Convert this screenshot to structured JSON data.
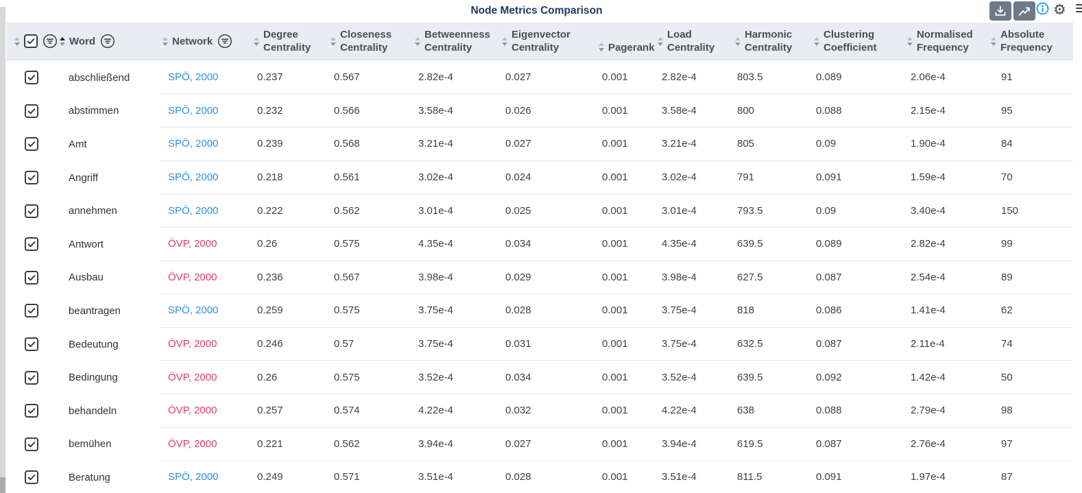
{
  "title": "Node Metrics Comparison",
  "toolbar": {
    "buttons": [
      {
        "name": "download-button",
        "icon": "download-icon"
      },
      {
        "name": "open-chart-button",
        "icon": "trend-chart-icon"
      }
    ],
    "info_icon": "info-icon",
    "settings_icon": "gear-icon",
    "menu_icon": "hamburger-menu-icon"
  },
  "colors": {
    "spo_blue": "#2b90e8",
    "ovp_red": "#e23a63",
    "title_navy": "#1e3c64",
    "header_bg": "#e9edf1",
    "toolbar_button": "#6e7a87",
    "info_blue": "#1b9df0"
  },
  "table": {
    "columns": [
      {
        "key": "select",
        "label": "",
        "label2": "",
        "filter": true,
        "sortable": true
      },
      {
        "key": "word",
        "label": "Word",
        "label2": "",
        "filter": true,
        "sortable": true,
        "sort": "asc"
      },
      {
        "key": "network",
        "label": "Network",
        "label2": "",
        "filter": true,
        "sortable": true
      },
      {
        "key": "degree",
        "label": "Degree",
        "label2": "Centrality",
        "filter": false,
        "sortable": true
      },
      {
        "key": "closeness",
        "label": "Closeness",
        "label2": "Centrality",
        "filter": false,
        "sortable": true
      },
      {
        "key": "betweenness",
        "label": "Betweenness",
        "label2": "Centrality",
        "filter": false,
        "sortable": true
      },
      {
        "key": "eigenvector",
        "label": "Eigenvector",
        "label2": "Centrality",
        "filter": false,
        "sortable": true
      },
      {
        "key": "pagerank",
        "label": "Pagerank",
        "label2": "",
        "filter": false,
        "sortable": true,
        "single": true
      },
      {
        "key": "load",
        "label": "Load",
        "label2": "Centrality",
        "filter": false,
        "sortable": true
      },
      {
        "key": "harmonic",
        "label": "Harmonic",
        "label2": "Centrality",
        "filter": false,
        "sortable": true
      },
      {
        "key": "clustering",
        "label": "Clustering",
        "label2": "Coefficient",
        "filter": false,
        "sortable": true
      },
      {
        "key": "normalised",
        "label": "Normalised",
        "label2": "Frequency",
        "filter": false,
        "sortable": true
      },
      {
        "key": "absolute",
        "label": "Absolute",
        "label2": "Frequency",
        "filter": false,
        "sortable": true
      }
    ],
    "rows": [
      {
        "checked": true,
        "word": "abschließend",
        "network": "SPÖ, 2000",
        "party": "spo",
        "degree": "0.237",
        "closeness": "0.567",
        "betweenness": "2.82e-4",
        "eigenvector": "0.027",
        "pagerank": "0.001",
        "load": "2.82e-4",
        "harmonic": "803.5",
        "clustering": "0.089",
        "normalised": "2.06e-4",
        "absolute": "91"
      },
      {
        "checked": true,
        "word": "abstimmen",
        "network": "SPÖ, 2000",
        "party": "spo",
        "degree": "0.232",
        "closeness": "0.566",
        "betweenness": "3.58e-4",
        "eigenvector": "0.026",
        "pagerank": "0.001",
        "load": "3.58e-4",
        "harmonic": "800",
        "clustering": "0.088",
        "normalised": "2.15e-4",
        "absolute": "95"
      },
      {
        "checked": true,
        "word": "Amt",
        "network": "SPÖ, 2000",
        "party": "spo",
        "degree": "0.239",
        "closeness": "0.568",
        "betweenness": "3.21e-4",
        "eigenvector": "0.027",
        "pagerank": "0.001",
        "load": "3.21e-4",
        "harmonic": "805",
        "clustering": "0.09",
        "normalised": "1.90e-4",
        "absolute": "84"
      },
      {
        "checked": true,
        "word": "Angriff",
        "network": "SPÖ, 2000",
        "party": "spo",
        "degree": "0.218",
        "closeness": "0.561",
        "betweenness": "3.02e-4",
        "eigenvector": "0.024",
        "pagerank": "0.001",
        "load": "3.02e-4",
        "harmonic": "791",
        "clustering": "0.091",
        "normalised": "1.59e-4",
        "absolute": "70"
      },
      {
        "checked": true,
        "word": "annehmen",
        "network": "SPÖ, 2000",
        "party": "spo",
        "degree": "0.222",
        "closeness": "0.562",
        "betweenness": "3.01e-4",
        "eigenvector": "0.025",
        "pagerank": "0.001",
        "load": "3.01e-4",
        "harmonic": "793.5",
        "clustering": "0.09",
        "normalised": "3.40e-4",
        "absolute": "150"
      },
      {
        "checked": true,
        "word": "Antwort",
        "network": "ÖVP, 2000",
        "party": "ovp",
        "degree": "0.26",
        "closeness": "0.575",
        "betweenness": "4.35e-4",
        "eigenvector": "0.034",
        "pagerank": "0.001",
        "load": "4.35e-4",
        "harmonic": "639.5",
        "clustering": "0.089",
        "normalised": "2.82e-4",
        "absolute": "99"
      },
      {
        "checked": true,
        "word": "Ausbau",
        "network": "ÖVP, 2000",
        "party": "ovp",
        "degree": "0.236",
        "closeness": "0.567",
        "betweenness": "3.98e-4",
        "eigenvector": "0.029",
        "pagerank": "0.001",
        "load": "3.98e-4",
        "harmonic": "627.5",
        "clustering": "0.087",
        "normalised": "2.54e-4",
        "absolute": "89"
      },
      {
        "checked": true,
        "word": "beantragen",
        "network": "SPÖ, 2000",
        "party": "spo",
        "degree": "0.259",
        "closeness": "0.575",
        "betweenness": "3.75e-4",
        "eigenvector": "0.028",
        "pagerank": "0.001",
        "load": "3.75e-4",
        "harmonic": "818",
        "clustering": "0.086",
        "normalised": "1.41e-4",
        "absolute": "62"
      },
      {
        "checked": true,
        "word": "Bedeutung",
        "network": "ÖVP, 2000",
        "party": "ovp",
        "degree": "0.246",
        "closeness": "0.57",
        "betweenness": "3.75e-4",
        "eigenvector": "0.031",
        "pagerank": "0.001",
        "load": "3.75e-4",
        "harmonic": "632.5",
        "clustering": "0.087",
        "normalised": "2.11e-4",
        "absolute": "74"
      },
      {
        "checked": true,
        "word": "Bedingung",
        "network": "ÖVP, 2000",
        "party": "ovp",
        "degree": "0.26",
        "closeness": "0.575",
        "betweenness": "3.52e-4",
        "eigenvector": "0.034",
        "pagerank": "0.001",
        "load": "3.52e-4",
        "harmonic": "639.5",
        "clustering": "0.092",
        "normalised": "1.42e-4",
        "absolute": "50"
      },
      {
        "checked": true,
        "word": "behandeln",
        "network": "ÖVP, 2000",
        "party": "ovp",
        "degree": "0.257",
        "closeness": "0.574",
        "betweenness": "4.22e-4",
        "eigenvector": "0.032",
        "pagerank": "0.001",
        "load": "4.22e-4",
        "harmonic": "638",
        "clustering": "0.088",
        "normalised": "2.79e-4",
        "absolute": "98"
      },
      {
        "checked": true,
        "word": "bemühen",
        "network": "ÖVP, 2000",
        "party": "ovp",
        "degree": "0.221",
        "closeness": "0.562",
        "betweenness": "3.94e-4",
        "eigenvector": "0.027",
        "pagerank": "0.001",
        "load": "3.94e-4",
        "harmonic": "619.5",
        "clustering": "0.087",
        "normalised": "2.76e-4",
        "absolute": "97"
      },
      {
        "checked": true,
        "word": "Beratung",
        "network": "SPÖ, 2000",
        "party": "spo",
        "degree": "0.249",
        "closeness": "0.571",
        "betweenness": "3.51e-4",
        "eigenvector": "0.028",
        "pagerank": "0.001",
        "load": "3.51e-4",
        "harmonic": "811.5",
        "clustering": "0.091",
        "normalised": "1.97e-4",
        "absolute": "87"
      }
    ]
  }
}
